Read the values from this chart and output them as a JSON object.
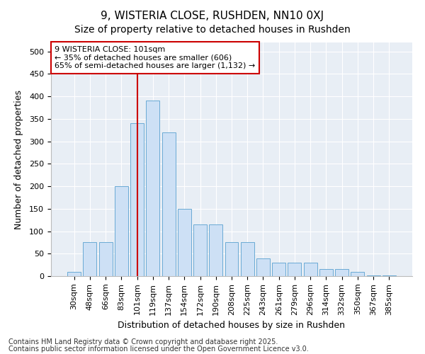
{
  "title": "9, WISTERIA CLOSE, RUSHDEN, NN10 0XJ",
  "subtitle": "Size of property relative to detached houses in Rushden",
  "xlabel": "Distribution of detached houses by size in Rushden",
  "ylabel": "Number of detached properties",
  "categories": [
    "30sqm",
    "48sqm",
    "66sqm",
    "83sqm",
    "101sqm",
    "119sqm",
    "137sqm",
    "154sqm",
    "172sqm",
    "190sqm",
    "208sqm",
    "225sqm",
    "243sqm",
    "261sqm",
    "279sqm",
    "296sqm",
    "314sqm",
    "332sqm",
    "350sqm",
    "367sqm",
    "385sqm"
  ],
  "values": [
    10,
    75,
    75,
    200,
    340,
    390,
    320,
    150,
    115,
    115,
    75,
    75,
    40,
    30,
    30,
    30,
    15,
    15,
    10,
    2,
    2
  ],
  "bar_color": "#cde0f5",
  "bar_edge_color": "#6aaad4",
  "vline_index": 4,
  "vline_color": "#cc0000",
  "annotation_text": "9 WISTERIA CLOSE: 101sqm\n← 35% of detached houses are smaller (606)\n65% of semi-detached houses are larger (1,132) →",
  "annotation_box_color": "#cc0000",
  "ylim": [
    0,
    520
  ],
  "yticks": [
    0,
    50,
    100,
    150,
    200,
    250,
    300,
    350,
    400,
    450,
    500
  ],
  "footer_line1": "Contains HM Land Registry data © Crown copyright and database right 2025.",
  "footer_line2": "Contains public sector information licensed under the Open Government Licence v3.0.",
  "bg_color": "#ffffff",
  "plot_bg_color": "#e8eef5",
  "grid_color": "#ffffff",
  "title_fontsize": 11,
  "subtitle_fontsize": 10,
  "axis_label_fontsize": 9,
  "tick_fontsize": 8,
  "annotation_fontsize": 8,
  "footer_fontsize": 7
}
